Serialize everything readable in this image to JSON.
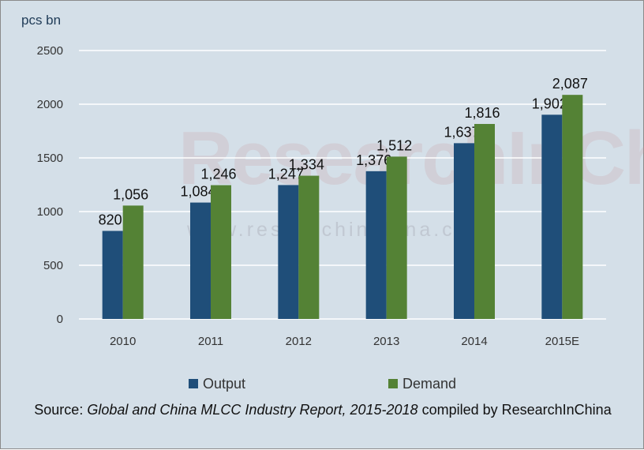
{
  "chart_data": {
    "type": "bar",
    "ylabel": "pcs bn",
    "ylim": [
      0,
      2500
    ],
    "yticks": [
      0,
      500,
      1000,
      1500,
      2000,
      2500
    ],
    "grid": true,
    "legend_position": "bottom",
    "categories": [
      "2010",
      "2011",
      "2012",
      "2013",
      "2014",
      "2015E"
    ],
    "series": [
      {
        "name": "Output",
        "color": "#1f4e79",
        "values": [
          820,
          1084,
          1247,
          1376,
          1637,
          1902
        ],
        "labels": [
          "820",
          "1,084",
          "1,247",
          "1,376",
          "1,637",
          "1,902"
        ]
      },
      {
        "name": "Demand",
        "color": "#548235",
        "values": [
          1056,
          1246,
          1334,
          1512,
          1816,
          2087
        ],
        "labels": [
          "1,056",
          "1,246",
          "1,334",
          "1,512",
          "1,816",
          "2,087"
        ]
      }
    ]
  },
  "source": {
    "prefix": "Source: ",
    "report": "Global and China MLCC Industry Report, 2015-2018",
    "suffix": " compiled by ResearchInChina"
  },
  "watermark": {
    "brand": "ResearchInChina",
    "url": "www.researchinchina.com"
  }
}
